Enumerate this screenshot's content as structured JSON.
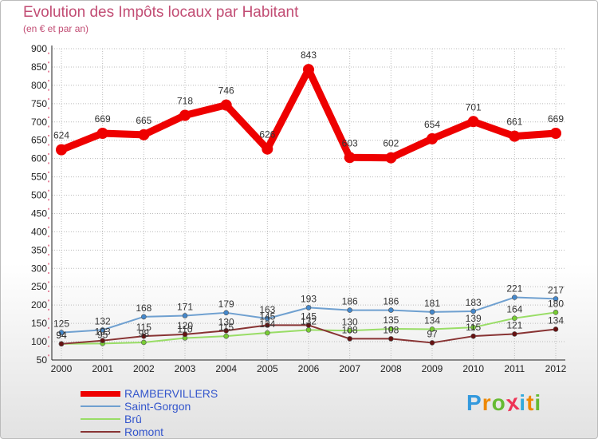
{
  "title": "Evolution des Impôts locaux par Habitant",
  "subtitle": "(en € et par an)",
  "logo": "Proxiti",
  "colors": {
    "title": "#c24d74",
    "grid": "#bbbbbb",
    "tickMark": "#e06080"
  },
  "chart_data": {
    "type": "line",
    "title": "Evolution des Impôts locaux par Habitant",
    "subtitle": "(en € et par an)",
    "xlabel": "",
    "ylabel": "",
    "ylim": [
      50,
      900
    ],
    "yticks": [
      50,
      100,
      150,
      200,
      250,
      300,
      350,
      400,
      450,
      500,
      550,
      600,
      650,
      700,
      750,
      800,
      850,
      900
    ],
    "grid": true,
    "categories": [
      "2000",
      "2001",
      "2002",
      "2003",
      "2004",
      "2005",
      "2006",
      "2007",
      "2008",
      "2009",
      "2010",
      "2011",
      "2012"
    ],
    "series": [
      {
        "name": "RAMBERVILLERS",
        "color": "#ee0000",
        "width": 9,
        "marker": 7,
        "values": [
          624,
          669,
          665,
          718,
          746,
          626,
          843,
          603,
          602,
          654,
          701,
          661,
          669
        ],
        "labels": [
          "624",
          "669",
          "665",
          "718",
          "746",
          "626",
          "843",
          "603",
          "602",
          "654",
          "701",
          "661",
          "669"
        ]
      },
      {
        "name": "Saint-Gorgon",
        "color": "#6fa0d0",
        "marker_color": "#4488cc",
        "width": 2,
        "marker": 3,
        "values": [
          125,
          132,
          168,
          171,
          179,
          163,
          193,
          186,
          186,
          181,
          183,
          221,
          217
        ],
        "labels": [
          "125",
          "132",
          "168",
          "171",
          "179",
          "163",
          "193",
          "186",
          "186",
          "181",
          "183",
          "221",
          "217"
        ]
      },
      {
        "name": "Brû",
        "color": "#99dd66",
        "marker_color": "#77cc33",
        "width": 2,
        "marker": 3,
        "values": [
          94,
          95,
          98,
          110,
          115,
          124,
          132,
          130,
          135,
          134,
          139,
          164,
          180
        ],
        "labels": [
          "94",
          "95",
          "98",
          "110",
          "115",
          "124",
          "132",
          "130",
          "135",
          "134",
          "139",
          "164",
          "180"
        ]
      },
      {
        "name": "Romont",
        "color": "#883333",
        "marker_color": "#661111",
        "width": 2,
        "marker": 3,
        "values": [
          94,
          103,
          115,
          120,
          130,
          145,
          145,
          108,
          108,
          97,
          115,
          121,
          134
        ],
        "labels": [
          "94",
          "103",
          "115",
          "120",
          "130",
          "145",
          "145",
          "108",
          "108",
          "97",
          "115",
          "121",
          "134"
        ]
      }
    ],
    "legend_position": "bottom-left"
  }
}
